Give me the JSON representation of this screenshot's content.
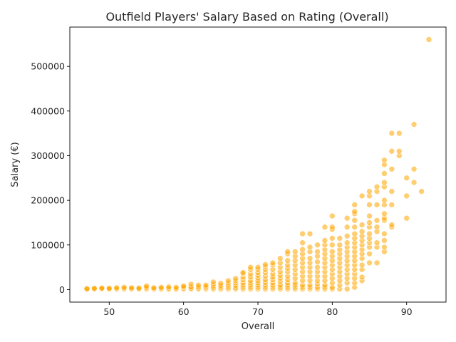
{
  "chart_data": {
    "type": "scatter",
    "title": "Outfield Players' Salary Based on Rating (Overall)",
    "xlabel": "Overall",
    "ylabel": "Salary (€)",
    "xlim": [
      44.7,
      95.3
    ],
    "ylim": [
      -28000,
      588000
    ],
    "xticks": [
      50,
      60,
      70,
      80,
      90
    ],
    "yticks": [
      0,
      100000,
      200000,
      300000,
      400000,
      500000
    ],
    "grid": false,
    "marker_color": "#FFA500",
    "points": [
      [
        47,
        500
      ],
      [
        47,
        1000
      ],
      [
        47,
        2000
      ],
      [
        48,
        500
      ],
      [
        48,
        1500
      ],
      [
        48,
        3000
      ],
      [
        49,
        800
      ],
      [
        49,
        2000
      ],
      [
        49,
        3500
      ],
      [
        50,
        500
      ],
      [
        50,
        1500
      ],
      [
        50,
        3000
      ],
      [
        51,
        500
      ],
      [
        51,
        2000
      ],
      [
        51,
        4000
      ],
      [
        52,
        800
      ],
      [
        52,
        2500
      ],
      [
        52,
        5000
      ],
      [
        53,
        600
      ],
      [
        53,
        2000
      ],
      [
        53,
        4000
      ],
      [
        54,
        500
      ],
      [
        54,
        1500
      ],
      [
        54,
        3500
      ],
      [
        55,
        800
      ],
      [
        55,
        2500
      ],
      [
        55,
        5000
      ],
      [
        55,
        8000
      ],
      [
        56,
        500
      ],
      [
        56,
        2000
      ],
      [
        56,
        4000
      ],
      [
        57,
        600
      ],
      [
        57,
        2500
      ],
      [
        57,
        5000
      ],
      [
        58,
        800
      ],
      [
        58,
        3000
      ],
      [
        58,
        6000
      ],
      [
        59,
        500
      ],
      [
        59,
        2000
      ],
      [
        59,
        5000
      ],
      [
        60,
        1000
      ],
      [
        60,
        3000
      ],
      [
        60,
        6000
      ],
      [
        60,
        8000
      ],
      [
        61,
        1000
      ],
      [
        61,
        3000
      ],
      [
        61,
        6000
      ],
      [
        61,
        12000
      ],
      [
        62,
        1000
      ],
      [
        62,
        3000
      ],
      [
        62,
        6000
      ],
      [
        62,
        10000
      ],
      [
        63,
        1000
      ],
      [
        63,
        4000
      ],
      [
        63,
        7000
      ],
      [
        63,
        10000
      ],
      [
        64,
        1000
      ],
      [
        64,
        4000
      ],
      [
        64,
        8000
      ],
      [
        64,
        12000
      ],
      [
        64,
        17000
      ],
      [
        65,
        1000
      ],
      [
        65,
        5000
      ],
      [
        65,
        9000
      ],
      [
        65,
        14000
      ],
      [
        66,
        1000
      ],
      [
        66,
        5000
      ],
      [
        66,
        10000
      ],
      [
        66,
        15000
      ],
      [
        66,
        20000
      ],
      [
        67,
        1000
      ],
      [
        67,
        4000
      ],
      [
        67,
        9000
      ],
      [
        67,
        15000
      ],
      [
        67,
        20000
      ],
      [
        67,
        25000
      ],
      [
        68,
        1000
      ],
      [
        68,
        5000
      ],
      [
        68,
        10000
      ],
      [
        68,
        15000
      ],
      [
        68,
        22000
      ],
      [
        68,
        28000
      ],
      [
        68,
        36000
      ],
      [
        68,
        38000
      ],
      [
        69,
        1000
      ],
      [
        69,
        5000
      ],
      [
        69,
        10000
      ],
      [
        69,
        15000
      ],
      [
        69,
        20000
      ],
      [
        69,
        28000
      ],
      [
        69,
        35000
      ],
      [
        69,
        45000
      ],
      [
        69,
        50000
      ],
      [
        70,
        1000
      ],
      [
        70,
        5000
      ],
      [
        70,
        10000
      ],
      [
        70,
        15000
      ],
      [
        70,
        20000
      ],
      [
        70,
        26000
      ],
      [
        70,
        32000
      ],
      [
        70,
        38000
      ],
      [
        70,
        45000
      ],
      [
        70,
        50000
      ],
      [
        71,
        1000
      ],
      [
        71,
        5000
      ],
      [
        71,
        10000
      ],
      [
        71,
        16000
      ],
      [
        71,
        22000
      ],
      [
        71,
        30000
      ],
      [
        71,
        38000
      ],
      [
        71,
        45000
      ],
      [
        71,
        52000
      ],
      [
        71,
        56000
      ],
      [
        72,
        1000
      ],
      [
        72,
        5000
      ],
      [
        72,
        10000
      ],
      [
        72,
        15000
      ],
      [
        72,
        22000
      ],
      [
        72,
        28000
      ],
      [
        72,
        35000
      ],
      [
        72,
        45000
      ],
      [
        72,
        55000
      ],
      [
        72,
        60000
      ],
      [
        73,
        1000
      ],
      [
        73,
        5000
      ],
      [
        73,
        10000
      ],
      [
        73,
        18000
      ],
      [
        73,
        25000
      ],
      [
        73,
        32000
      ],
      [
        73,
        40000
      ],
      [
        73,
        50000
      ],
      [
        73,
        60000
      ],
      [
        73,
        70000
      ],
      [
        74,
        1000
      ],
      [
        74,
        5000
      ],
      [
        74,
        10000
      ],
      [
        74,
        15000
      ],
      [
        74,
        22000
      ],
      [
        74,
        30000
      ],
      [
        74,
        40000
      ],
      [
        74,
        48000
      ],
      [
        74,
        55000
      ],
      [
        74,
        65000
      ],
      [
        74,
        80000
      ],
      [
        74,
        85000
      ],
      [
        75,
        1000
      ],
      [
        75,
        5000
      ],
      [
        75,
        10000
      ],
      [
        75,
        15000
      ],
      [
        75,
        25000
      ],
      [
        75,
        35000
      ],
      [
        75,
        45000
      ],
      [
        75,
        55000
      ],
      [
        75,
        65000
      ],
      [
        75,
        75000
      ],
      [
        75,
        85000
      ],
      [
        76,
        1000
      ],
      [
        76,
        5000
      ],
      [
        76,
        10000
      ],
      [
        76,
        20000
      ],
      [
        76,
        30000
      ],
      [
        76,
        40000
      ],
      [
        76,
        50000
      ],
      [
        76,
        60000
      ],
      [
        76,
        70000
      ],
      [
        76,
        80000
      ],
      [
        76,
        90000
      ],
      [
        76,
        105000
      ],
      [
        76,
        125000
      ],
      [
        77,
        1000
      ],
      [
        77,
        5000
      ],
      [
        77,
        10000
      ],
      [
        77,
        20000
      ],
      [
        77,
        30000
      ],
      [
        77,
        40000
      ],
      [
        77,
        50000
      ],
      [
        77,
        60000
      ],
      [
        77,
        70000
      ],
      [
        77,
        85000
      ],
      [
        77,
        95000
      ],
      [
        77,
        125000
      ],
      [
        78,
        1000
      ],
      [
        78,
        5000
      ],
      [
        78,
        12000
      ],
      [
        78,
        20000
      ],
      [
        78,
        30000
      ],
      [
        78,
        40000
      ],
      [
        78,
        50000
      ],
      [
        78,
        62000
      ],
      [
        78,
        75000
      ],
      [
        78,
        85000
      ],
      [
        78,
        100000
      ],
      [
        79,
        1000
      ],
      [
        79,
        5000
      ],
      [
        79,
        10000
      ],
      [
        79,
        20000
      ],
      [
        79,
        30000
      ],
      [
        79,
        40000
      ],
      [
        79,
        50000
      ],
      [
        79,
        60000
      ],
      [
        79,
        70000
      ],
      [
        79,
        80000
      ],
      [
        79,
        90000
      ],
      [
        79,
        100000
      ],
      [
        79,
        110000
      ],
      [
        79,
        140000
      ],
      [
        80,
        1000
      ],
      [
        80,
        5000
      ],
      [
        80,
        15000
      ],
      [
        80,
        25000
      ],
      [
        80,
        35000
      ],
      [
        80,
        45000
      ],
      [
        80,
        55000
      ],
      [
        80,
        65000
      ],
      [
        80,
        75000
      ],
      [
        80,
        85000
      ],
      [
        80,
        100000
      ],
      [
        80,
        115000
      ],
      [
        80,
        135000
      ],
      [
        80,
        140000
      ],
      [
        80,
        165000
      ],
      [
        81,
        1000
      ],
      [
        81,
        10000
      ],
      [
        81,
        20000
      ],
      [
        81,
        30000
      ],
      [
        81,
        40000
      ],
      [
        81,
        50000
      ],
      [
        81,
        60000
      ],
      [
        81,
        70000
      ],
      [
        81,
        80000
      ],
      [
        81,
        90000
      ],
      [
        81,
        100000
      ],
      [
        81,
        115000
      ],
      [
        82,
        1000
      ],
      [
        82,
        15000
      ],
      [
        82,
        25000
      ],
      [
        82,
        35000
      ],
      [
        82,
        45000
      ],
      [
        82,
        55000
      ],
      [
        82,
        65000
      ],
      [
        82,
        75000
      ],
      [
        82,
        85000
      ],
      [
        82,
        95000
      ],
      [
        82,
        105000
      ],
      [
        82,
        120000
      ],
      [
        82,
        140000
      ],
      [
        82,
        160000
      ],
      [
        83,
        5000
      ],
      [
        83,
        15000
      ],
      [
        83,
        25000
      ],
      [
        83,
        35000
      ],
      [
        83,
        45000
      ],
      [
        83,
        55000
      ],
      [
        83,
        65000
      ],
      [
        83,
        75000
      ],
      [
        83,
        85000
      ],
      [
        83,
        95000
      ],
      [
        83,
        105000
      ],
      [
        83,
        115000
      ],
      [
        83,
        125000
      ],
      [
        83,
        140000
      ],
      [
        83,
        155000
      ],
      [
        83,
        170000
      ],
      [
        83,
        175000
      ],
      [
        83,
        190000
      ],
      [
        84,
        20000
      ],
      [
        84,
        28000
      ],
      [
        84,
        45000
      ],
      [
        84,
        55000
      ],
      [
        84,
        70000
      ],
      [
        84,
        80000
      ],
      [
        84,
        90000
      ],
      [
        84,
        100000
      ],
      [
        84,
        110000
      ],
      [
        84,
        120000
      ],
      [
        84,
        130000
      ],
      [
        84,
        145000
      ],
      [
        84,
        210000
      ],
      [
        85,
        60000
      ],
      [
        85,
        80000
      ],
      [
        85,
        95000
      ],
      [
        85,
        105000
      ],
      [
        85,
        115000
      ],
      [
        85,
        125000
      ],
      [
        85,
        140000
      ],
      [
        85,
        150000
      ],
      [
        85,
        165000
      ],
      [
        85,
        190000
      ],
      [
        85,
        210000
      ],
      [
        85,
        220000
      ],
      [
        86,
        60000
      ],
      [
        86,
        95000
      ],
      [
        86,
        105000
      ],
      [
        86,
        130000
      ],
      [
        86,
        140000
      ],
      [
        86,
        155000
      ],
      [
        86,
        190000
      ],
      [
        86,
        220000
      ],
      [
        86,
        230000
      ],
      [
        87,
        85000
      ],
      [
        87,
        95000
      ],
      [
        87,
        110000
      ],
      [
        87,
        125000
      ],
      [
        87,
        155000
      ],
      [
        87,
        160000
      ],
      [
        87,
        170000
      ],
      [
        87,
        190000
      ],
      [
        87,
        200000
      ],
      [
        87,
        230000
      ],
      [
        87,
        240000
      ],
      [
        87,
        260000
      ],
      [
        87,
        280000
      ],
      [
        87,
        290000
      ],
      [
        88,
        140000
      ],
      [
        88,
        145000
      ],
      [
        88,
        190000
      ],
      [
        88,
        220000
      ],
      [
        88,
        270000
      ],
      [
        88,
        310000
      ],
      [
        88,
        350000
      ],
      [
        89,
        300000
      ],
      [
        89,
        310000
      ],
      [
        89,
        350000
      ],
      [
        90,
        160000
      ],
      [
        90,
        210000
      ],
      [
        90,
        250000
      ],
      [
        91,
        240000
      ],
      [
        91,
        270000
      ],
      [
        91,
        370000
      ],
      [
        92,
        220000
      ],
      [
        93,
        560000
      ]
    ]
  }
}
